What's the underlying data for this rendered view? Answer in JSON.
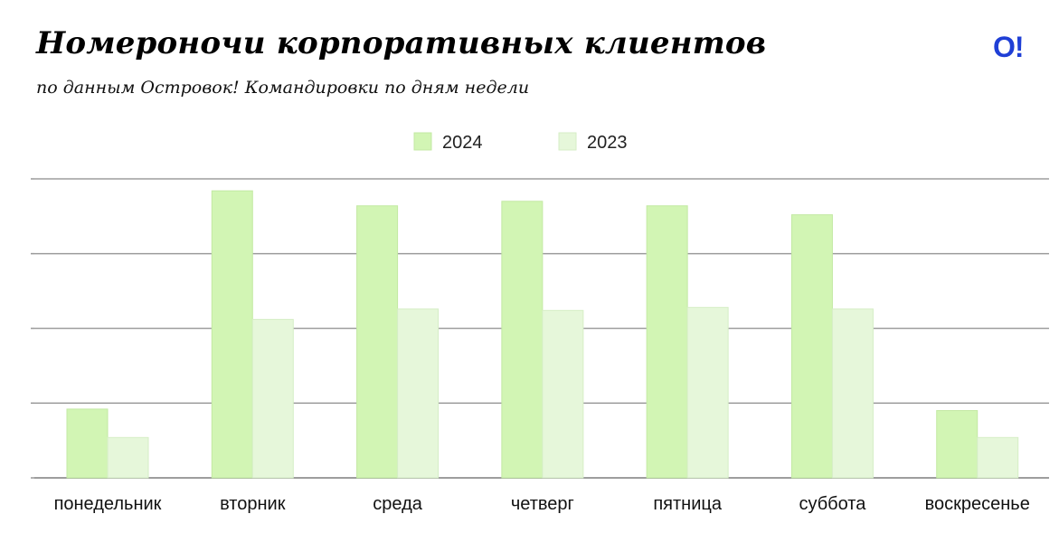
{
  "header": {
    "title": "Номероночи корпоративных клиентов",
    "subtitle": "по данным Островок! Командировки по дням недели",
    "logo": "O!"
  },
  "colors": {
    "series_2024": "#d2f5b4",
    "series_2023": "#e6f7da",
    "grid": "#9e9e9e",
    "logo": "#1f3fd6"
  },
  "chart_data": {
    "type": "bar",
    "title": "Номероночи корпоративных клиентов",
    "subtitle": "по данным Островок! Командировки по дням недели",
    "categories": [
      "понедельник",
      "вторник",
      "среда",
      "четверг",
      "пятница",
      "суббота",
      "воскресенье"
    ],
    "series": [
      {
        "name": "2024",
        "values": [
          23,
          96,
          91,
          92.5,
          91,
          88,
          22.5
        ]
      },
      {
        "name": "2023",
        "values": [
          13.5,
          53,
          56.5,
          56,
          57,
          56.5,
          13.5
        ]
      }
    ],
    "ylim": [
      0,
      100
    ],
    "gridlines": [
      0,
      25,
      50,
      75,
      100
    ],
    "ytick_labels": false,
    "grid": true,
    "legend": "top-center",
    "xlabel": "",
    "ylabel": ""
  }
}
